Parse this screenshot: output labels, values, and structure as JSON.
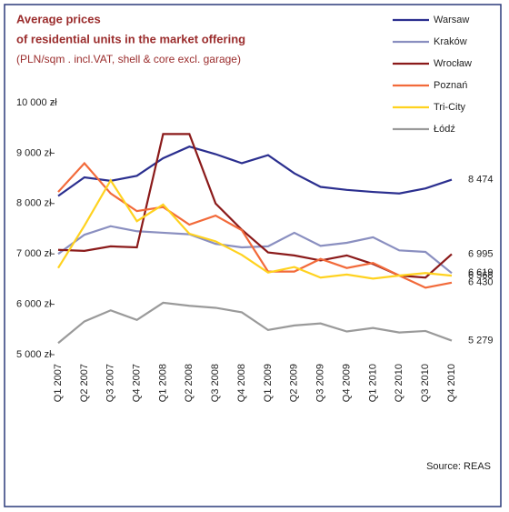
{
  "chart_data": {
    "type": "line",
    "title": [
      "Average prices",
      "of residential units in the market offering"
    ],
    "subtitle": "(PLN/sqm . incl.VAT, shell & core excl. garage)",
    "source": "Source: REAS",
    "categories": [
      "Q1 2007",
      "Q2 2007",
      "Q3 2007",
      "Q4 2007",
      "Q1 2008",
      "Q2 2008",
      "Q3 2008",
      "Q4 2008",
      "Q1 2009",
      "Q2 2009",
      "Q3 2009",
      "Q4 2009",
      "Q1 2010",
      "Q2 2010",
      "Q3 2010",
      "Q4 2010"
    ],
    "ylim": [
      5000,
      10000
    ],
    "yticks": [
      {
        "value": 5000,
        "label": "5 000 zł"
      },
      {
        "value": 6000,
        "label": "6 000 zł"
      },
      {
        "value": 7000,
        "label": "7 000 zł"
      },
      {
        "value": 8000,
        "label": "8 000 zł"
      },
      {
        "value": 9000,
        "label": "9 000 zł"
      },
      {
        "value": 10000,
        "label": "10 000 zł"
      }
    ],
    "legend": "top-right",
    "series": [
      {
        "name": "Warsaw",
        "color": "#2b2f8f",
        "values": [
          8150,
          8520,
          8450,
          8550,
          8900,
          9130,
          8980,
          8800,
          8960,
          8600,
          8330,
          8270,
          8230,
          8200,
          8300,
          8474
        ],
        "value_labels": [
          null,
          null,
          null,
          null,
          null,
          null,
          null,
          null,
          null,
          null,
          null,
          null,
          null,
          null,
          null,
          "8 474"
        ]
      },
      {
        "name": "Kraków",
        "color": "#8a8fc0",
        "values": [
          7000,
          7380,
          7550,
          7450,
          7420,
          7390,
          7200,
          7130,
          7150,
          7420,
          7160,
          7220,
          7330,
          7070,
          7040,
          6619
        ],
        "value_labels": [
          null,
          null,
          null,
          null,
          null,
          null,
          null,
          null,
          null,
          null,
          null,
          null,
          null,
          null,
          null,
          "6 619"
        ]
      },
      {
        "name": "Wrocław",
        "color": "#8b1a1a",
        "values": [
          7080,
          7060,
          7150,
          7130,
          9380,
          9380,
          8000,
          7480,
          7030,
          6970,
          6870,
          6970,
          6800,
          6570,
          6530,
          6995
        ],
        "value_labels": [
          null,
          null,
          null,
          null,
          null,
          null,
          null,
          null,
          null,
          null,
          null,
          null,
          null,
          null,
          null,
          "6 995"
        ]
      },
      {
        "name": "Poznań",
        "color": "#f26a3a",
        "values": [
          8230,
          8800,
          8200,
          7850,
          7930,
          7580,
          7760,
          7470,
          6650,
          6650,
          6900,
          6720,
          6820,
          6570,
          6330,
          6430
        ],
        "value_labels": [
          null,
          null,
          null,
          null,
          null,
          null,
          null,
          null,
          null,
          null,
          null,
          null,
          null,
          null,
          null,
          "6 430"
        ]
      },
      {
        "name": "Tri-City",
        "color": "#ffd21f",
        "values": [
          6720,
          7560,
          8460,
          7650,
          7980,
          7400,
          7250,
          6980,
          6630,
          6740,
          6530,
          6590,
          6510,
          6570,
          6620,
          6568
        ],
        "value_labels": [
          null,
          null,
          null,
          null,
          null,
          null,
          null,
          null,
          null,
          null,
          null,
          null,
          null,
          null,
          null,
          "6 568"
        ]
      },
      {
        "name": "Łódź",
        "color": "#9a9a9a",
        "values": [
          5230,
          5660,
          5880,
          5690,
          6030,
          5970,
          5930,
          5840,
          5490,
          5580,
          5620,
          5460,
          5530,
          5440,
          5470,
          5279
        ],
        "value_labels": [
          null,
          null,
          null,
          null,
          null,
          null,
          null,
          null,
          null,
          null,
          null,
          null,
          null,
          null,
          null,
          "5 279"
        ]
      }
    ]
  }
}
